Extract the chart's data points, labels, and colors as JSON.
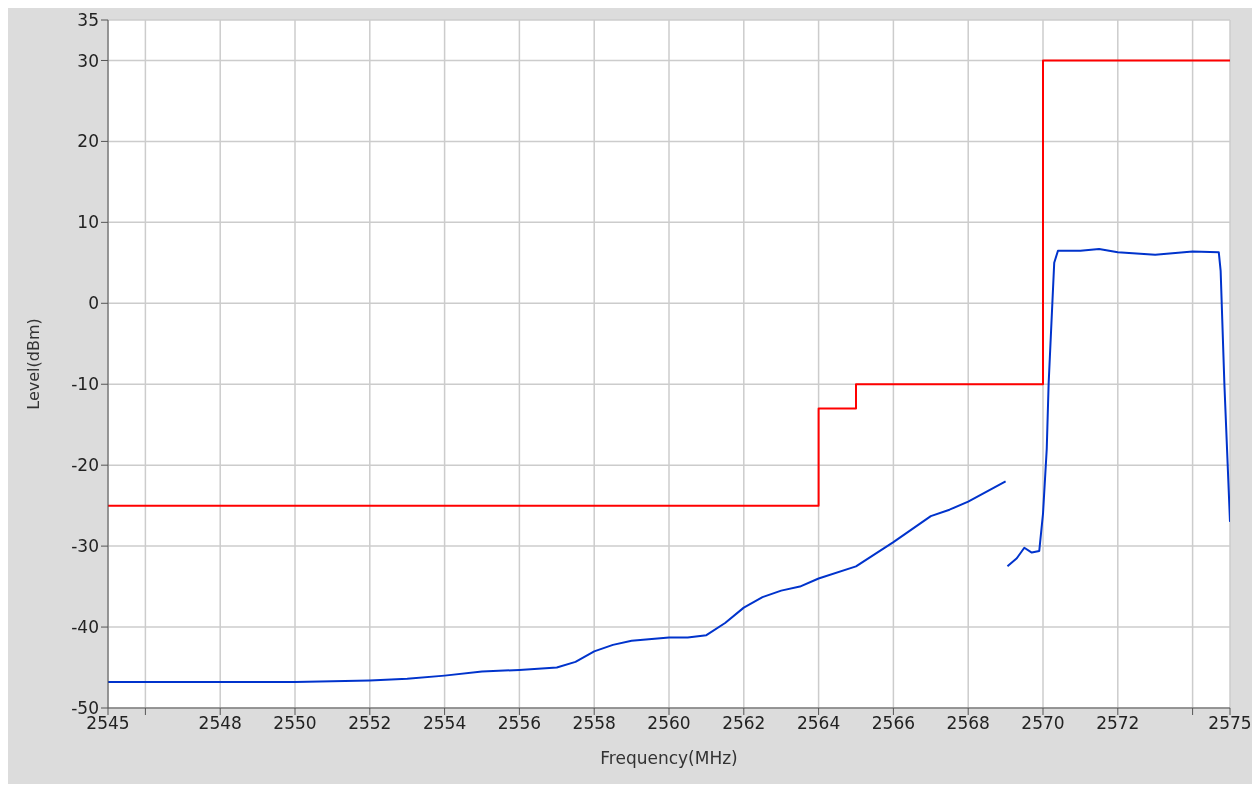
{
  "chart_data": {
    "type": "line",
    "xlabel": "Frequency(MHz)",
    "ylabel": "Level(dBm)",
    "xlim": [
      2545,
      2575
    ],
    "ylim": [
      -50,
      35
    ],
    "xticks": [
      2545,
      {
        "value": 2546,
        "label": null
      },
      2548,
      2550,
      2552,
      2554,
      2556,
      2558,
      2560,
      2562,
      2564,
      2566,
      2568,
      2570,
      2572,
      {
        "value": 2574,
        "label": null
      },
      2575
    ],
    "yticks": [
      -50,
      -40,
      -30,
      -20,
      -10,
      0,
      10,
      20,
      30,
      35
    ],
    "grid": true,
    "series": [
      {
        "type": "step",
        "color": "#ff0000",
        "x": [
          2545,
          2564,
          2565,
          2570,
          2575
        ],
        "values": [
          -25,
          -13,
          -10,
          30,
          30
        ]
      },
      {
        "type": "line",
        "color": "#0033cc",
        "x": [
          2545,
          2548,
          2550,
          2552,
          2553,
          2554,
          2555,
          2556,
          2557,
          2557.5,
          2558,
          2558.5,
          2559,
          2560,
          2560.5,
          2561,
          2561.5,
          2562,
          2562.5,
          2563,
          2563.5,
          2564,
          2565,
          2566,
          2567,
          2567.5,
          2568,
          2569,
          2569.02,
          2569.05,
          2569.3,
          2569.5,
          2569.7,
          2569.9,
          2570,
          2570.1,
          2570.15,
          2570.25,
          2570.3,
          2570.4,
          2571,
          2571.5,
          2572,
          2573,
          2574,
          2574.7,
          2574.75,
          2574.85,
          2575
        ],
        "values": [
          -46.8,
          -46.8,
          -46.8,
          -46.6,
          -46.4,
          -46,
          -45.5,
          -45.3,
          -45,
          -44.3,
          -43,
          -42.2,
          -41.7,
          -41.3,
          -41.3,
          -41,
          -39.5,
          -37.6,
          -36.3,
          -35.5,
          -35,
          -34,
          -32.5,
          -29.5,
          -26.3,
          -25.5,
          -24.5,
          -22,
          null,
          -32.5,
          -31.5,
          -30.2,
          -30.8,
          -30.6,
          -26,
          -18,
          -10,
          0,
          5,
          6.5,
          6.5,
          6.7,
          6.3,
          6,
          6.4,
          6.3,
          4,
          -10,
          -27
        ]
      }
    ]
  }
}
